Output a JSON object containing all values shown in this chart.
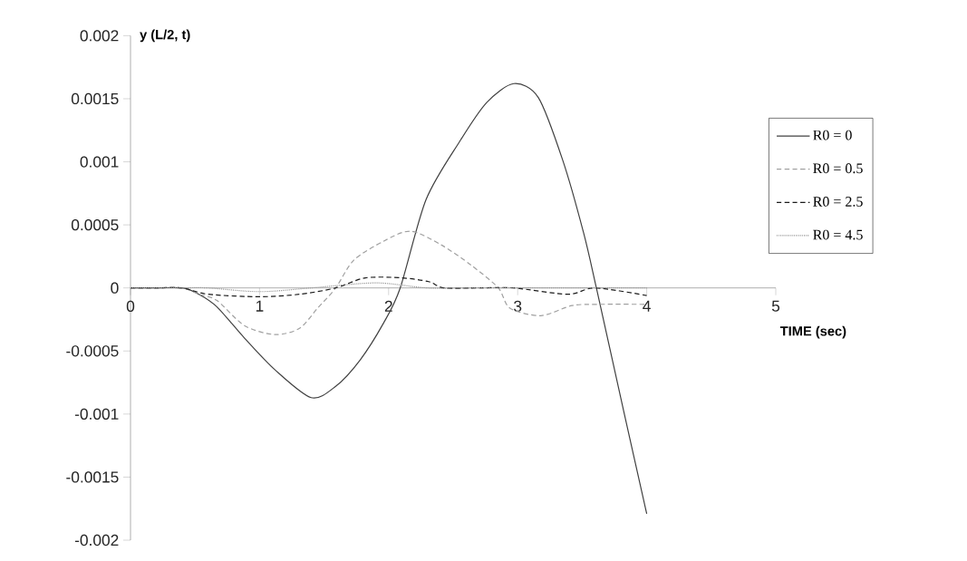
{
  "chart_data": {
    "type": "line",
    "xlabel": "TIME (sec)",
    "ylabel": "y (L/2, t)",
    "xlim": [
      0,
      5
    ],
    "ylim": [
      -0.002,
      0.002
    ],
    "xticks": [
      0,
      1,
      2,
      3,
      4,
      5
    ],
    "yticks": [
      -0.002,
      -0.0015,
      -0.001,
      -0.0005,
      0,
      0.0005,
      0.001,
      0.0015,
      0.002
    ],
    "legend": "right",
    "grid": false,
    "series": [
      {
        "name": "R0 = 0",
        "color": "#404040",
        "line_style": "solid",
        "x": [
          0,
          0.2,
          0.4,
          0.53,
          0.67,
          0.885,
          1.12,
          1.4,
          1.59,
          1.78,
          1.96,
          2.09,
          2.29,
          2.55,
          2.76,
          2.97,
          3.16,
          3.35,
          3.51,
          3.61,
          3.82,
          4.0
        ],
        "values": [
          0,
          0,
          0,
          -5e-05,
          -0.00015,
          -0.0004,
          -0.00065,
          -0.00087,
          -0.00078,
          -0.00057,
          -0.00028,
          0,
          0.0007,
          0.00116,
          0.00147,
          0.00162,
          0.00151,
          0.00101,
          0.00044,
          0,
          -0.00097,
          -0.00179
        ]
      },
      {
        "name": "R0 = 0.5",
        "color": "#a0a0a0",
        "line_style": "dashed",
        "x": [
          0,
          0.2,
          0.4,
          0.53,
          0.67,
          0.885,
          1.12,
          1.31,
          1.45,
          1.59,
          1.73,
          1.96,
          2.17,
          2.41,
          2.64,
          2.85,
          2.94,
          3.18,
          3.42,
          3.63,
          4.0
        ],
        "values": [
          0,
          0,
          0,
          -5e-05,
          -0.0001,
          -0.0003,
          -0.00037,
          -0.00032,
          -0.00016,
          0,
          0.00022,
          0.00037,
          0.00045,
          0.00034,
          0.00018,
          0,
          -0.00016,
          -0.00022,
          -0.00014,
          -0.00013,
          -0.00013
        ]
      },
      {
        "name": "R0 = 2.5",
        "color": "#1a1a1a",
        "line_style": "dashed",
        "x": [
          0,
          0.2,
          0.4,
          0.6,
          1.0,
          1.31,
          1.59,
          1.82,
          2.1,
          2.31,
          2.43,
          2.71,
          2.97,
          3.39,
          3.6,
          4.0
        ],
        "values": [
          0,
          0,
          0,
          -5e-05,
          -7e-05,
          -5e-05,
          0,
          8e-05,
          8e-05,
          5e-05,
          0,
          0,
          0,
          -5e-05,
          0,
          -6e-05
        ]
      },
      {
        "name": "R0 = 4.5",
        "color": "#909090",
        "line_style": "dotted",
        "x": [
          0,
          0.2,
          0.4,
          0.6,
          1.0,
          1.4,
          1.9,
          2.3,
          2.7,
          3.1,
          3.5,
          4.0
        ],
        "values": [
          0,
          0,
          0,
          0,
          -3e-05,
          0,
          4e-05,
          0,
          0,
          0,
          0,
          0
        ]
      }
    ]
  }
}
